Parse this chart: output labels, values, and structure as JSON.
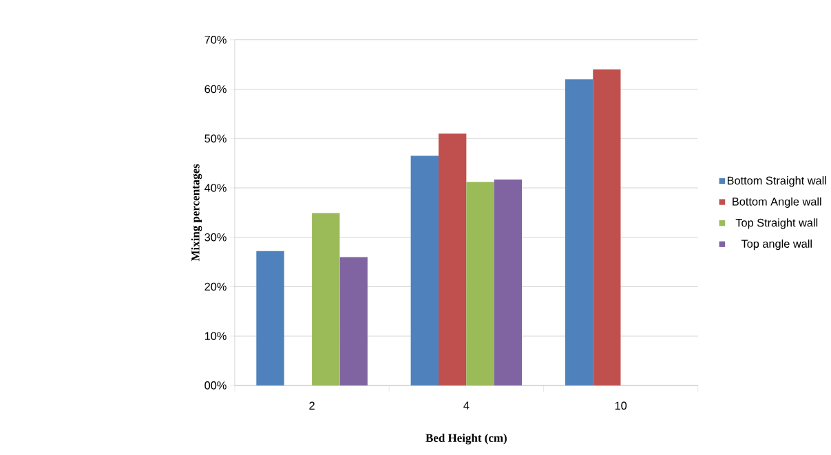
{
  "chart_data": {
    "type": "bar",
    "xlabel": "Bed Height (cm)",
    "ylabel": "Mixing percentages",
    "categories": [
      "2",
      "4",
      "10"
    ],
    "series": [
      {
        "name": "Bottom Straight wall",
        "color": "#4f81bd",
        "values": [
          27.2,
          46.5,
          62
        ]
      },
      {
        "name": "Bottom Angle wall",
        "color": "#c0504d",
        "values": [
          null,
          51,
          64
        ]
      },
      {
        "name": "Top Straight wall",
        "color": "#9bbb59",
        "values": [
          34.9,
          41.2,
          null
        ]
      },
      {
        "name": "Top angle wall",
        "color": "#8064a2",
        "values": [
          26,
          41.7,
          null
        ]
      }
    ],
    "ylim": [
      0,
      70
    ],
    "yticks": [
      {
        "value": 0,
        "label": "00%"
      },
      {
        "value": 10,
        "label": "10%"
      },
      {
        "value": 20,
        "label": "20%"
      },
      {
        "value": 30,
        "label": "30%"
      },
      {
        "value": 40,
        "label": "40%"
      },
      {
        "value": 50,
        "label": "50%"
      },
      {
        "value": 60,
        "label": "60%"
      },
      {
        "value": 70,
        "label": "70%"
      }
    ],
    "grid": "y",
    "legend": "right"
  }
}
